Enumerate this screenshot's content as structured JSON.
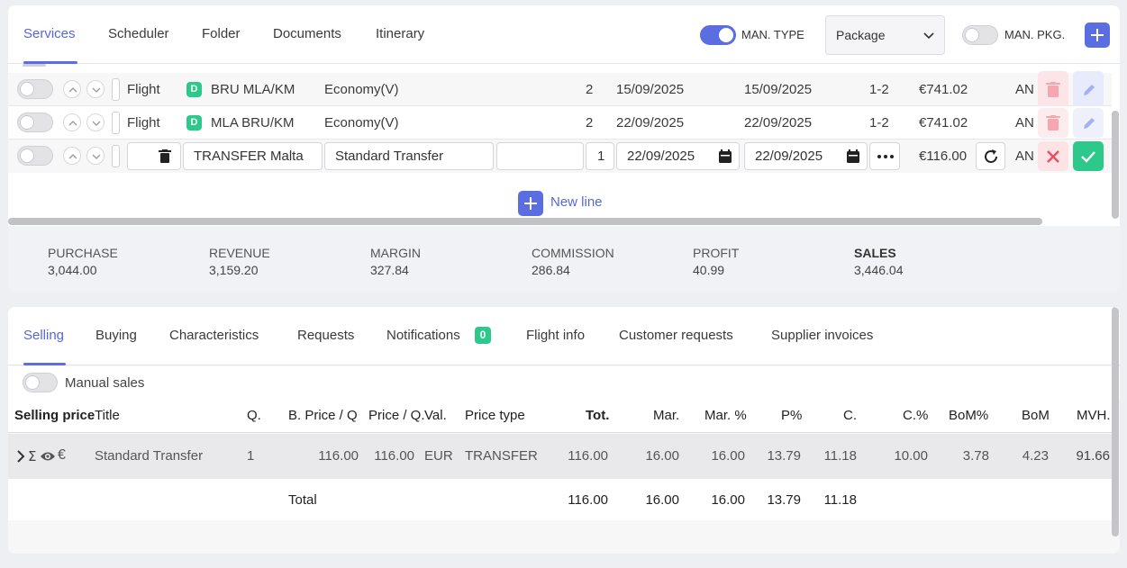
{
  "top_tabs": [
    "Services",
    "Scheduler",
    "Folder",
    "Documents",
    "Itinerary"
  ],
  "header": {
    "man_type_label": "MAN. TYPE",
    "man_type_on": true,
    "package_select_value": "Package",
    "man_pkg_label": "MAN. PKG.",
    "man_pkg_on": false
  },
  "services": [
    {
      "type": "Flight",
      "badge": "D",
      "route": "BRU MLA/KM",
      "class": "Economy(V)",
      "qty": "2",
      "start": "15/09/2025",
      "end": "15/09/2025",
      "pax": "1-2",
      "price": "€741.02",
      "status": "AN"
    },
    {
      "type": "Flight",
      "badge": "D",
      "route": "MLA BRU/KM",
      "class": "Economy(V)",
      "qty": "2",
      "start": "22/09/2025",
      "end": "22/09/2025",
      "pax": "1-2",
      "price": "€741.02",
      "status": "AN"
    }
  ],
  "edit_row": {
    "title": "TRANSFER Malta",
    "description": "Standard Transfer",
    "extra": "",
    "qty": "1",
    "start": "22/09/2025",
    "end": "22/09/2025",
    "price": "€116.00",
    "status": "AN"
  },
  "new_line_label": "New line",
  "totals": [
    {
      "label": "PURCHASE",
      "value": "3,044.00"
    },
    {
      "label": "REVENUE",
      "value": "3,159.20"
    },
    {
      "label": "MARGIN",
      "value": "327.84"
    },
    {
      "label": "COMMISSION",
      "value": "286.84"
    },
    {
      "label": "PROFIT",
      "value": "40.99"
    },
    {
      "label": "SALES",
      "value": "3,446.04"
    }
  ],
  "lower_tabs": [
    "Selling",
    "Buying",
    "Characteristics",
    "Requests",
    "Notifications",
    "Flight info",
    "Customer requests",
    "Supplier invoices"
  ],
  "notifications_count": "0",
  "manual_sales_label": "Manual sales",
  "grid_headers": [
    "Selling price",
    "Title",
    "Q.",
    "B. Price / Q",
    "Price / Q.",
    "Val.",
    "Price type",
    "Tot.",
    "Mar.",
    "Mar. %",
    "P%",
    "C.",
    "C.%",
    "BoM%",
    "BoM",
    "MVH."
  ],
  "grid_row": {
    "icons": [
      "chevron-right",
      "sigma",
      "eye",
      "euro"
    ],
    "title": "Standard Transfer",
    "q": "1",
    "b_price": "116.00",
    "price": "116.00",
    "val": "EUR",
    "price_type": "TRANSFER",
    "tot": "116.00",
    "mar": "16.00",
    "mar_pct": "16.00",
    "p_pct": "13.79",
    "c": "11.18",
    "c_pct": "10.00",
    "bom_pct": "3.78",
    "bom": "4.23",
    "mvh": "91.66"
  },
  "total_row": {
    "label": "Total",
    "tot": "116.00",
    "mar": "16.00",
    "mar_pct": "16.00",
    "p_pct": "13.79",
    "c": "11.18"
  },
  "colors": {
    "accent": "#5b6ee1",
    "green": "#2cc98a",
    "red_soft": "#fde2e5",
    "blue_soft": "#e7eafb"
  }
}
